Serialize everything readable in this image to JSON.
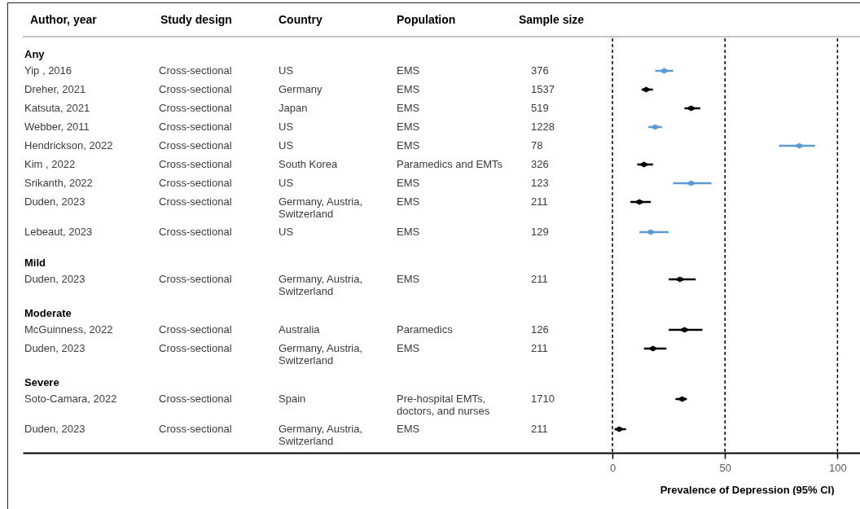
{
  "chart_data": {
    "type": "scatter",
    "orientation": "horizontal",
    "ylabel": "Author, year",
    "xlabel": "Prevalence of Depression (95% CI)",
    "categories": [
      "Any",
      "Yip , 2016",
      "Dreher, 2021",
      "Katsuta, 2021",
      "Webber, 2011",
      "Hendrickson, 2022",
      "Kim , 2022",
      "Srikanth, 2022",
      "Duden, 2023",
      "Lebeaut, 2023",
      "Mild",
      "Duden, 2023",
      "Moderate",
      "McGuinness, 2022",
      "Duden, 2023",
      "Severe",
      "Soto-Camara, 2022",
      "Duden, 2023"
    ],
    "values": [
      null,
      23,
      15,
      35,
      19,
      83,
      14,
      35,
      12,
      17,
      null,
      30,
      null,
      32,
      18,
      null,
      31,
      3
    ],
    "errors": [
      null,
      [
        19,
        27
      ],
      [
        13,
        18
      ],
      [
        32,
        39
      ],
      [
        16,
        22
      ],
      [
        74,
        90
      ],
      [
        11,
        18
      ],
      [
        27,
        44
      ],
      [
        8,
        17
      ],
      [
        12,
        25
      ],
      null,
      [
        25,
        37
      ],
      null,
      [
        25,
        40
      ],
      [
        14,
        24
      ],
      null,
      [
        28,
        33
      ],
      [
        1,
        6
      ]
    ],
    "colors": [
      null,
      "#5b9bd5",
      "#000000",
      "#000000",
      "#5b9bd5",
      "#5b9bd5",
      "#000000",
      "#5b9bd5",
      "#000000",
      "#5b9bd5",
      null,
      "#000000",
      null,
      "#000000",
      "#000000",
      null,
      "#000000",
      "#000000"
    ],
    "marker": "diamond",
    "xlim": [
      -262,
      110
    ],
    "xticks": [
      0,
      50,
      100
    ],
    "grid": "x",
    "annotations": [
      "Study design",
      "Country",
      "Population",
      "Sample size",
      "Cross-sectional",
      "US",
      "EMS",
      "376",
      "Cross-sectional",
      "Germany",
      "EMS",
      "1537",
      "Cross-sectional",
      "Japan",
      "EMS",
      "519",
      "Cross-sectional",
      "US",
      "EMS",
      "1228",
      "Cross-sectional",
      "US",
      "EMS",
      "78",
      "Cross-sectional",
      "South Korea",
      "Paramedics and EMTs",
      "326",
      "Cross-sectional",
      "US",
      "EMS",
      "123",
      "Cross-sectional",
      "Germany, Austria, Switzerland",
      "EMS",
      "211",
      "Cross-sectional",
      "US",
      "EMS",
      "129",
      "Cross-sectional",
      "Germany, Austria, Switzerland",
      "EMS",
      "211",
      "Cross-sectional",
      "Australia",
      "Paramedics",
      "126",
      "Cross-sectional",
      "Germany, Austria, Switzerland",
      "EMS",
      "211",
      "Cross-sectional",
      "Spain",
      "Pre-hospital EMTs, doctors, and nurses",
      "1710",
      "Cross-sectional",
      "Germany, Austria, Switzerland",
      "EMS",
      "211"
    ]
  }
}
